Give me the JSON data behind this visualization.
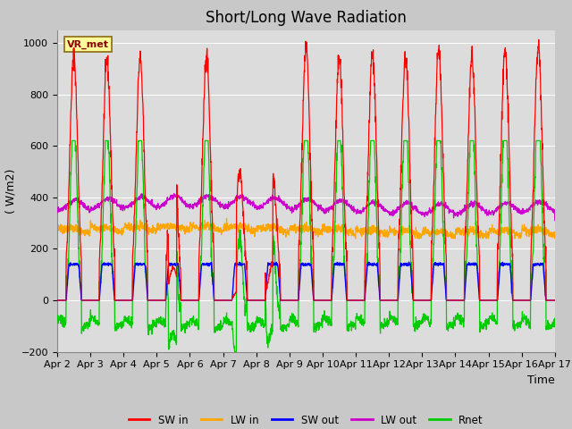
{
  "title": "Short/Long Wave Radiation",
  "ylabel": "( W/m2)",
  "xlabel": "Time",
  "ylim": [
    -200,
    1050
  ],
  "yticks": [
    -200,
    0,
    200,
    400,
    600,
    800,
    1000
  ],
  "xtick_labels": [
    "Apr 2",
    "Apr 3",
    "Apr 4",
    "Apr 5",
    "Apr 6",
    "Apr 7",
    "Apr 8",
    "Apr 9",
    "Apr 10",
    "Apr 11",
    "Apr 12",
    "Apr 13",
    "Apr 14",
    "Apr 15",
    "Apr 16",
    "Apr 17"
  ],
  "colors": {
    "SW_in": "#ff0000",
    "LW_in": "#ffa500",
    "SW_out": "#0000ff",
    "LW_out": "#cc00cc",
    "Rnet": "#00cc00"
  },
  "legend_labels": [
    "SW in",
    "LW in",
    "SW out",
    "LW out",
    "Rnet"
  ],
  "annotation_text": "VR_met",
  "annotation_color": "#8b0000",
  "background_color": "#dcdcdc",
  "grid_color": "#ffffff",
  "title_fontsize": 12,
  "label_fontsize": 9,
  "tick_fontsize": 8
}
